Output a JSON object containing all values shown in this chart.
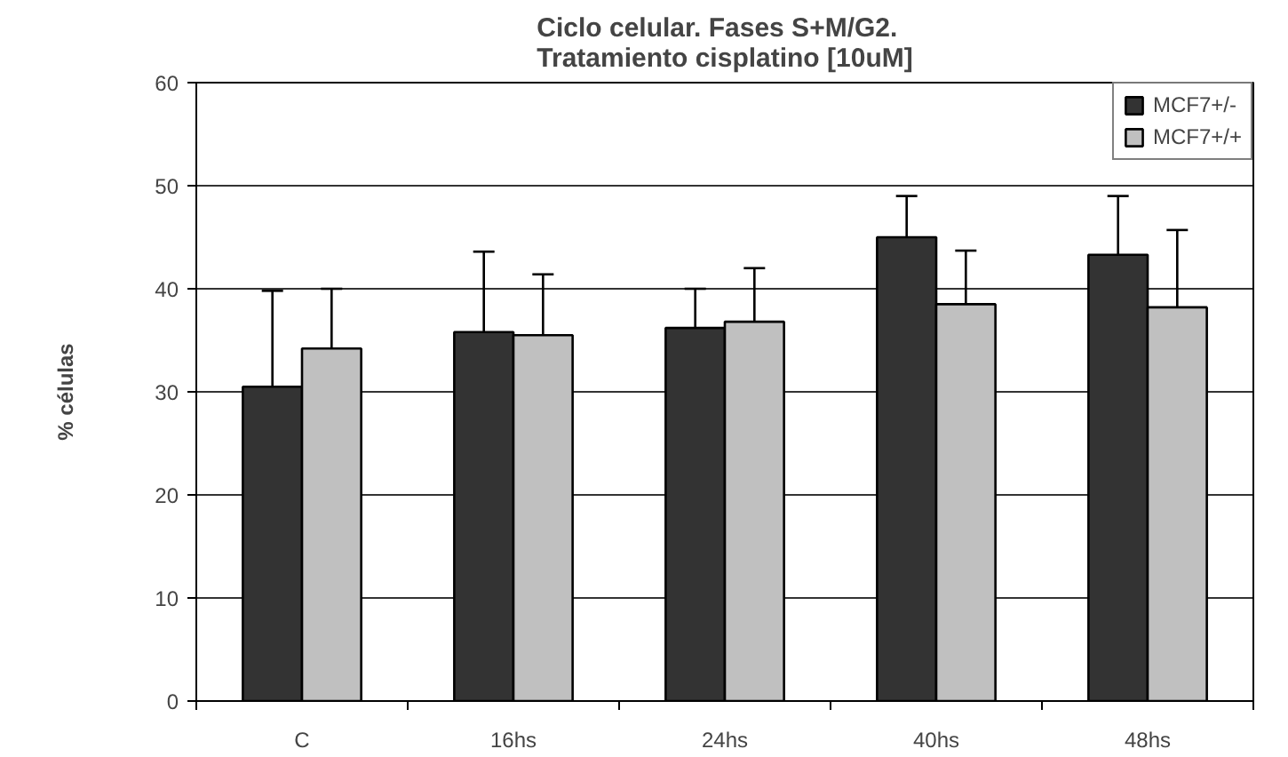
{
  "chart_data": {
    "type": "bar",
    "title": "Ciclo celular. Fases S+M/G2.\nTratamiento cisplatino [10uM]",
    "ylabel": "% células",
    "categories": [
      "C",
      "16hs",
      "24hs",
      "40hs",
      "48hs"
    ],
    "series": [
      {
        "name": "MCF7+/-",
        "color": "#333333",
        "values": [
          30.5,
          35.8,
          36.2,
          45.0,
          43.3
        ],
        "errors": [
          [
            30.5,
            39.8
          ],
          [
            35.8,
            43.6
          ],
          [
            36.2,
            40.0
          ],
          [
            45.0,
            49.0
          ],
          [
            43.3,
            49.0
          ]
        ]
      },
      {
        "name": "MCF7+/+",
        "color": "#c0c0c0",
        "values": [
          34.2,
          35.5,
          36.8,
          38.5,
          38.2
        ],
        "errors": [
          [
            34.2,
            40.0
          ],
          [
            35.5,
            41.4
          ],
          [
            36.8,
            42.0
          ],
          [
            38.5,
            43.7
          ],
          [
            38.2,
            45.7
          ]
        ]
      }
    ],
    "ylim": [
      0,
      60
    ],
    "yticks": [
      0,
      10,
      20,
      30,
      40,
      50,
      60
    ],
    "grid": "y",
    "legend": "top right"
  }
}
